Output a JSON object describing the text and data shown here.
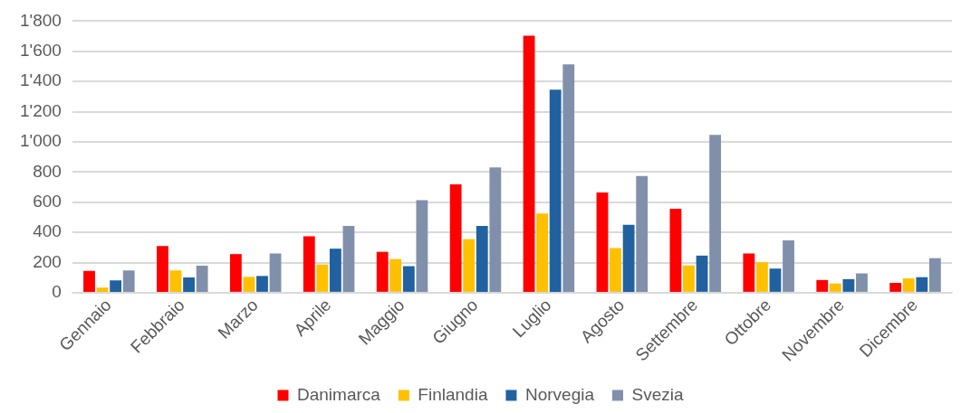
{
  "chart_data": {
    "type": "bar",
    "categories": [
      "Gennaio",
      "Febbraio",
      "Marzo",
      "Aprile",
      "Maggio",
      "Giugno",
      "Luglio",
      "Agosto",
      "Settembre",
      "Ottobre",
      "Novembre",
      "Dicembre"
    ],
    "series": [
      {
        "name": "Danimarca",
        "color": "#ff0000",
        "values": [
          145,
          309,
          256,
          374,
          271,
          718,
          1704,
          664,
          557,
          260,
          84,
          65
        ]
      },
      {
        "name": "Finlandia",
        "color": "#ffc000",
        "values": [
          34,
          147,
          105,
          187,
          223,
          355,
          525,
          296,
          181,
          202,
          61,
          95
        ]
      },
      {
        "name": "Norvegia",
        "color": "#2161a0",
        "values": [
          82,
          101,
          111,
          292,
          176,
          443,
          1345,
          450,
          246,
          160,
          90,
          103
        ]
      },
      {
        "name": "Svezia",
        "color": "#8190aa",
        "values": [
          147,
          179,
          260,
          443,
          613,
          830,
          1513,
          773,
          1046,
          347,
          128,
          229
        ]
      }
    ],
    "ylim": [
      0,
      1800
    ],
    "yticks": [
      0,
      200,
      400,
      600,
      800,
      {
        "value": 1000,
        "label": "1'000"
      },
      {
        "value": 1200,
        "label": "1'200"
      },
      {
        "value": 1400,
        "label": "1'400"
      },
      {
        "value": 1600,
        "label": "1'600"
      },
      {
        "value": 1800,
        "label": "1'800"
      }
    ],
    "grid": "y",
    "legend": "bottom"
  }
}
